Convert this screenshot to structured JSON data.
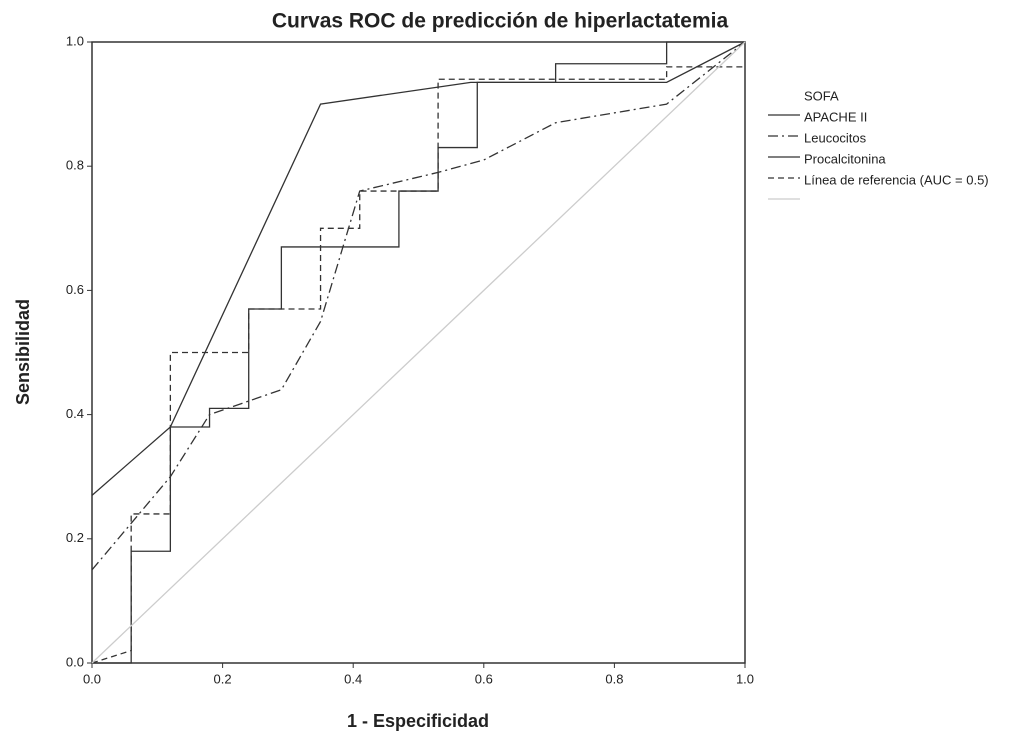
{
  "chart_data": {
    "type": "line",
    "title": "Curvas ROC de predicción de hiperlactatemia",
    "x_label": "1 - Especificidad",
    "y_label": "Sensibilidad",
    "xlim": [
      0,
      1
    ],
    "ylim": [
      0,
      1
    ],
    "xticks": [
      {
        "value": 0,
        "label": "0.0"
      },
      0.2,
      0.4,
      0.6,
      0.8,
      {
        "value": 1,
        "label": "1.0"
      }
    ],
    "yticks": [
      {
        "value": 0,
        "label": "0.0"
      },
      0.2,
      0.4,
      0.6,
      0.8,
      {
        "value": 1,
        "label": "1.0"
      }
    ],
    "legend": "right",
    "series": [
      {
        "name": "SOFA",
        "color": "#333333",
        "dash": "none",
        "x": [
          0,
          0.12,
          0.35,
          0.58,
          0.88,
          1
        ],
        "values": [
          0.27,
          0.38,
          0.9,
          0.935,
          0.935,
          1
        ]
      },
      {
        "name": "APACHE II",
        "color": "#333333",
        "dash": "10 4 2 4",
        "x": [
          0,
          0.12,
          0.18,
          0.29,
          0.35,
          0.41,
          0.53,
          0.6,
          0.71,
          0.88,
          1
        ],
        "values": [
          0.15,
          0.3,
          0.4,
          0.44,
          0.55,
          0.76,
          0.79,
          0.81,
          0.87,
          0.9,
          1
        ]
      },
      {
        "name": "Leucocitos",
        "color": "#333333",
        "dash": "none",
        "x": [
          0,
          0.06,
          0.06,
          0.12,
          0.12,
          0.18,
          0.18,
          0.24,
          0.24,
          0.29,
          0.29,
          0.47,
          0.47,
          0.53,
          0.53,
          0.59,
          0.59,
          0.71,
          0.71,
          0.88,
          0.88,
          1
        ],
        "values": [
          0,
          0,
          0.18,
          0.18,
          0.38,
          0.38,
          0.41,
          0.41,
          0.57,
          0.57,
          0.67,
          0.67,
          0.76,
          0.76,
          0.83,
          0.83,
          0.935,
          0.935,
          0.965,
          0.965,
          1,
          1
        ]
      },
      {
        "name": "Procalcitonina",
        "color": "#333333",
        "dash": "6 4",
        "x": [
          0,
          0.06,
          0.06,
          0.12,
          0.12,
          0.24,
          0.24,
          0.35,
          0.35,
          0.41,
          0.41,
          0.53,
          0.53,
          0.88,
          0.88,
          1
        ],
        "values": [
          0,
          0.02,
          0.24,
          0.24,
          0.5,
          0.5,
          0.57,
          0.57,
          0.7,
          0.7,
          0.76,
          0.76,
          0.94,
          0.94,
          0.96,
          0.96
        ]
      },
      {
        "name": "Línea de referencia (AUC = 0.5)",
        "color": "#cccccc",
        "dash": "none",
        "x": [
          0,
          1
        ],
        "values": [
          0,
          1
        ]
      }
    ]
  }
}
